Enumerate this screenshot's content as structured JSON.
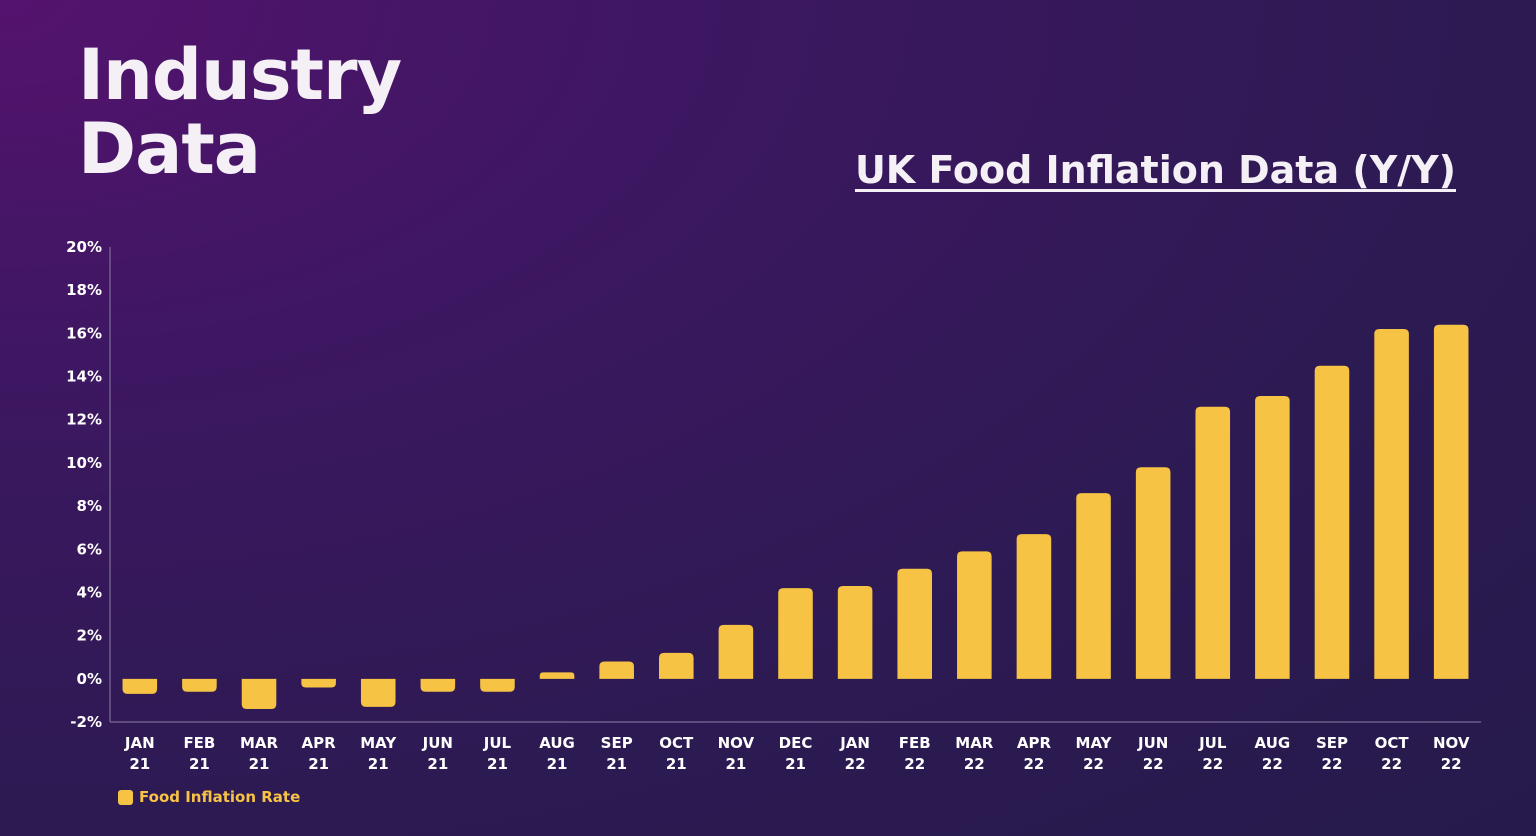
{
  "heading": {
    "line1": "Industry",
    "line2": "Data"
  },
  "chart_data": {
    "type": "bar",
    "title": "UK Food Inflation Data (Y/Y)",
    "categories": [
      [
        "JAN",
        "21"
      ],
      [
        "FEB",
        "21"
      ],
      [
        "MAR",
        "21"
      ],
      [
        "APR",
        "21"
      ],
      [
        "MAY",
        "21"
      ],
      [
        "JUN",
        "21"
      ],
      [
        "JUL",
        "21"
      ],
      [
        "AUG",
        "21"
      ],
      [
        "SEP",
        "21"
      ],
      [
        "OCT",
        "21"
      ],
      [
        "NOV",
        "21"
      ],
      [
        "DEC",
        "21"
      ],
      [
        "JAN",
        "22"
      ],
      [
        "FEB",
        "22"
      ],
      [
        "MAR",
        "22"
      ],
      [
        "APR",
        "22"
      ],
      [
        "MAY",
        "22"
      ],
      [
        "JUN",
        "22"
      ],
      [
        "JUL",
        "22"
      ],
      [
        "AUG",
        "22"
      ],
      [
        "SEP",
        "22"
      ],
      [
        "OCT",
        "22"
      ],
      [
        "NOV",
        "22"
      ]
    ],
    "series": [
      {
        "name": "Food Inflation Rate",
        "color": "#f6c344",
        "values": [
          -0.7,
          -0.6,
          -1.4,
          -0.4,
          -1.3,
          -0.6,
          -0.6,
          0.3,
          0.8,
          1.2,
          2.5,
          4.2,
          4.3,
          5.1,
          5.9,
          6.7,
          8.6,
          9.8,
          12.6,
          13.1,
          14.5,
          16.2,
          16.4
        ]
      }
    ],
    "ylim": [
      -2,
      20
    ],
    "yticks": [
      "-2%",
      "0%",
      "2%",
      "4%",
      "6%",
      "8%",
      "10%",
      "12%",
      "14%",
      "16%",
      "18%",
      "20%"
    ],
    "grid": false,
    "legend": "bottom-left"
  }
}
